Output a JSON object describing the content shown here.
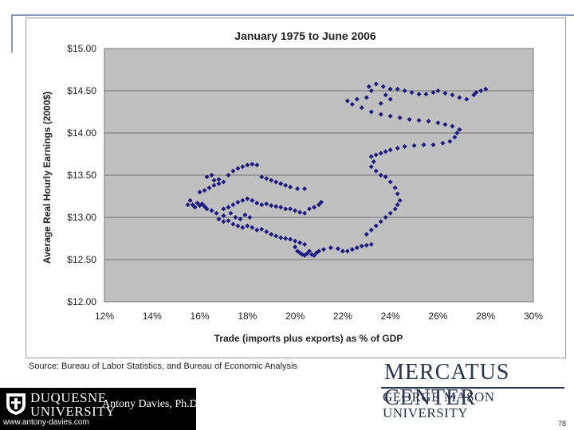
{
  "chart_data": {
    "type": "scatter",
    "title": "January 1975 to June 2006",
    "xlabel": "Trade (imports plus exports) as % of GDP",
    "ylabel": "Average Real Hourly Earnings (2000$)",
    "xlim": [
      12,
      30
    ],
    "ylim": [
      12.0,
      15.0
    ],
    "xticks": [
      "12%",
      "14%",
      "16%",
      "18%",
      "20%",
      "22%",
      "24%",
      "26%",
      "28%",
      "30%"
    ],
    "yticks": [
      "$12.00",
      "$12.50",
      "$13.00",
      "$13.50",
      "$14.00",
      "$14.50",
      "$15.00"
    ],
    "grid": "horizontal",
    "marker_color": "#1a1a80",
    "plot_bg": "#c0c0c0",
    "points": [
      [
        15.5,
        13.15
      ],
      [
        15.6,
        13.2
      ],
      [
        15.7,
        13.15
      ],
      [
        15.8,
        13.12
      ],
      [
        15.9,
        13.17
      ],
      [
        16.0,
        13.14
      ],
      [
        16.1,
        13.16
      ],
      [
        16.2,
        13.13
      ],
      [
        16.0,
        13.3
      ],
      [
        16.2,
        13.32
      ],
      [
        16.4,
        13.35
      ],
      [
        16.6,
        13.38
      ],
      [
        16.8,
        13.4
      ],
      [
        17.0,
        13.42
      ],
      [
        16.8,
        13.45
      ],
      [
        16.5,
        13.5
      ],
      [
        16.3,
        13.48
      ],
      [
        16.6,
        13.44
      ],
      [
        17.2,
        13.5
      ],
      [
        17.4,
        13.55
      ],
      [
        17.6,
        13.58
      ],
      [
        17.8,
        13.6
      ],
      [
        18.0,
        13.62
      ],
      [
        18.2,
        13.63
      ],
      [
        18.4,
        13.62
      ],
      [
        18.6,
        13.48
      ],
      [
        18.8,
        13.46
      ],
      [
        19.0,
        13.44
      ],
      [
        19.2,
        13.42
      ],
      [
        19.4,
        13.4
      ],
      [
        19.6,
        13.38
      ],
      [
        19.8,
        13.36
      ],
      [
        20.1,
        13.34
      ],
      [
        20.4,
        13.34
      ],
      [
        16.3,
        13.1
      ],
      [
        16.5,
        13.08
      ],
      [
        16.7,
        13.05
      ],
      [
        17.0,
        13.1
      ],
      [
        17.2,
        13.12
      ],
      [
        17.4,
        13.15
      ],
      [
        17.6,
        13.18
      ],
      [
        17.8,
        13.2
      ],
      [
        18.0,
        13.22
      ],
      [
        18.2,
        13.2
      ],
      [
        18.4,
        13.17
      ],
      [
        18.6,
        13.15
      ],
      [
        18.8,
        13.16
      ],
      [
        19.0,
        13.14
      ],
      [
        19.2,
        13.13
      ],
      [
        19.4,
        13.12
      ],
      [
        19.6,
        13.1
      ],
      [
        19.8,
        13.1
      ],
      [
        20.0,
        13.08
      ],
      [
        20.2,
        13.06
      ],
      [
        20.4,
        13.05
      ],
      [
        20.6,
        13.1
      ],
      [
        20.8,
        13.12
      ],
      [
        21.0,
        13.15
      ],
      [
        21.1,
        13.18
      ],
      [
        16.8,
        12.98
      ],
      [
        17.0,
        12.95
      ],
      [
        17.2,
        12.96
      ],
      [
        17.4,
        12.92
      ],
      [
        17.6,
        12.9
      ],
      [
        17.8,
        12.88
      ],
      [
        18.0,
        12.9
      ],
      [
        18.2,
        12.88
      ],
      [
        18.4,
        12.85
      ],
      [
        18.6,
        12.86
      ],
      [
        18.8,
        12.83
      ],
      [
        19.0,
        12.8
      ],
      [
        19.2,
        12.78
      ],
      [
        19.4,
        12.76
      ],
      [
        19.6,
        12.75
      ],
      [
        19.8,
        12.74
      ],
      [
        20.0,
        12.72
      ],
      [
        20.2,
        12.7
      ],
      [
        20.4,
        12.68
      ],
      [
        17.0,
        13.02
      ],
      [
        17.3,
        13.05
      ],
      [
        17.5,
        13.0
      ],
      [
        17.7,
        12.98
      ],
      [
        17.9,
        13.03
      ],
      [
        18.1,
        13.0
      ],
      [
        20.0,
        12.65
      ],
      [
        20.1,
        12.6
      ],
      [
        20.2,
        12.58
      ],
      [
        20.3,
        12.56
      ],
      [
        20.4,
        12.55
      ],
      [
        20.5,
        12.57
      ],
      [
        20.6,
        12.6
      ],
      [
        20.7,
        12.56
      ],
      [
        20.8,
        12.55
      ],
      [
        20.9,
        12.58
      ],
      [
        21.0,
        12.6
      ],
      [
        21.2,
        12.62
      ],
      [
        21.5,
        12.64
      ],
      [
        21.8,
        12.63
      ],
      [
        22.0,
        12.6
      ],
      [
        22.2,
        12.6
      ],
      [
        22.4,
        12.62
      ],
      [
        22.6,
        12.64
      ],
      [
        22.8,
        12.66
      ],
      [
        23.0,
        12.67
      ],
      [
        23.2,
        12.68
      ],
      [
        23.0,
        12.8
      ],
      [
        23.2,
        12.85
      ],
      [
        23.4,
        12.9
      ],
      [
        23.6,
        12.95
      ],
      [
        23.8,
        13.0
      ],
      [
        24.0,
        13.05
      ],
      [
        24.2,
        13.1
      ],
      [
        24.3,
        13.15
      ],
      [
        24.4,
        13.2
      ],
      [
        24.3,
        13.28
      ],
      [
        24.2,
        13.35
      ],
      [
        24.0,
        13.42
      ],
      [
        23.8,
        13.48
      ],
      [
        23.6,
        13.5
      ],
      [
        23.4,
        13.55
      ],
      [
        23.2,
        13.6
      ],
      [
        23.3,
        13.66
      ],
      [
        23.2,
        13.72
      ],
      [
        23.4,
        13.74
      ],
      [
        23.6,
        13.76
      ],
      [
        23.8,
        13.78
      ],
      [
        24.0,
        13.8
      ],
      [
        24.3,
        13.82
      ],
      [
        24.6,
        13.84
      ],
      [
        25.0,
        13.85
      ],
      [
        25.4,
        13.86
      ],
      [
        25.8,
        13.86
      ],
      [
        26.2,
        13.88
      ],
      [
        26.5,
        13.9
      ],
      [
        26.7,
        13.95
      ],
      [
        26.8,
        14.0
      ],
      [
        26.9,
        14.04
      ],
      [
        26.6,
        14.08
      ],
      [
        26.3,
        14.1
      ],
      [
        26.0,
        14.12
      ],
      [
        25.6,
        14.14
      ],
      [
        25.2,
        14.15
      ],
      [
        24.8,
        14.16
      ],
      [
        24.4,
        14.18
      ],
      [
        24.0,
        14.2
      ],
      [
        23.6,
        14.22
      ],
      [
        23.2,
        14.25
      ],
      [
        22.8,
        14.3
      ],
      [
        22.4,
        14.34
      ],
      [
        22.2,
        14.38
      ],
      [
        22.6,
        14.4
      ],
      [
        23.0,
        14.42
      ],
      [
        23.2,
        14.5
      ],
      [
        23.1,
        14.55
      ],
      [
        23.4,
        14.58
      ],
      [
        23.7,
        14.55
      ],
      [
        24.0,
        14.52
      ],
      [
        24.3,
        14.52
      ],
      [
        24.6,
        14.5
      ],
      [
        24.9,
        14.48
      ],
      [
        25.2,
        14.46
      ],
      [
        25.5,
        14.46
      ],
      [
        25.8,
        14.48
      ],
      [
        26.0,
        14.5
      ],
      [
        26.3,
        14.47
      ],
      [
        26.6,
        14.45
      ],
      [
        26.9,
        14.42
      ],
      [
        27.2,
        14.4
      ],
      [
        27.5,
        14.45
      ],
      [
        27.8,
        14.5
      ],
      [
        28.0,
        14.52
      ],
      [
        27.6,
        14.48
      ],
      [
        23.8,
        14.45
      ],
      [
        24.0,
        14.4
      ],
      [
        23.6,
        14.35
      ]
    ]
  },
  "footer": {
    "source": "Source: Bureau of Labor Statistics, and Bureau of Economic Analysis",
    "duquesne_line1": "DUQUESNE",
    "duquesne_line2": "UNIVERSITY",
    "author": "Antony Davies, Ph.D.",
    "url": "www.antony-davies.com",
    "mercatus_line1": "MERCATUS CENTER",
    "mercatus_line2": "GEORGE MASON UNIVERSITY",
    "page_number": "78"
  }
}
